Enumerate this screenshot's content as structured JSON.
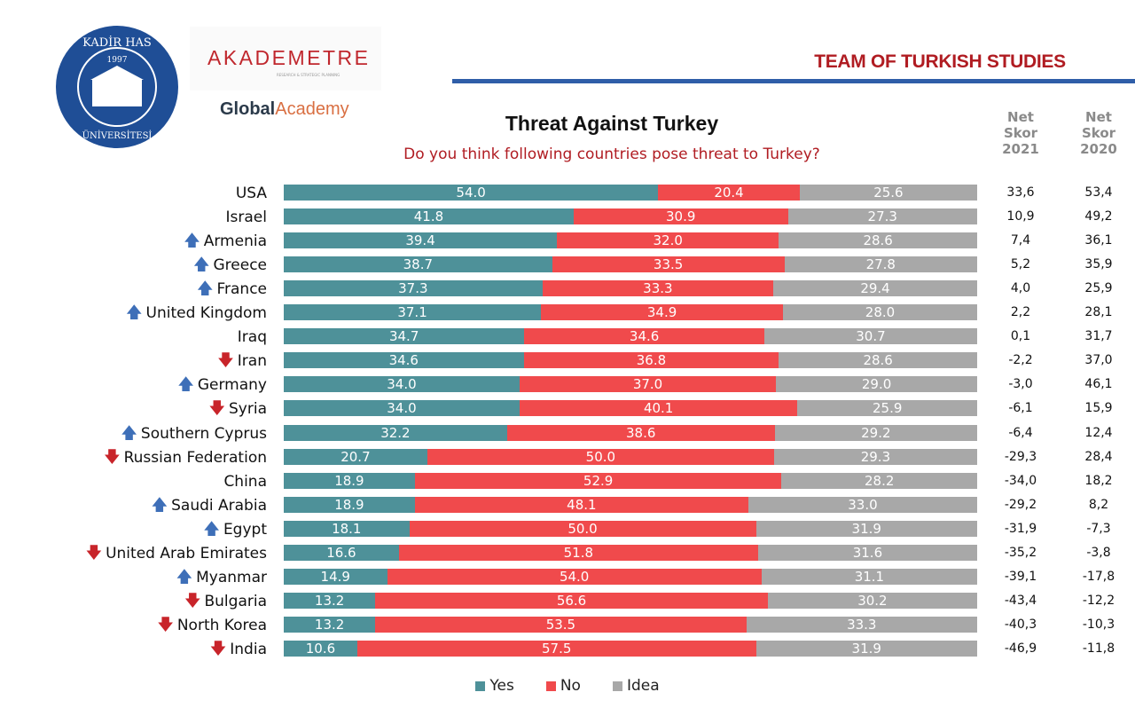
{
  "header": {
    "org": "TEAM OF TURKISH STUDIES",
    "logo_seal": "KADİR HAS ÜNİVERSİTESİ 1997",
    "logo_akademetre": "AKADEMETRE",
    "logo_akademetre_sub": "RESEARCH & STRATEGIC PLANNING",
    "logo_global_1": "Global",
    "logo_global_2": "Academy"
  },
  "colors": {
    "yes": "#4e9199",
    "no": "#f04a4c",
    "idea": "#a8a8a8",
    "up": "#3e6fb8",
    "down": "#c8242a",
    "accent": "#b01c22"
  },
  "net_headers": {
    "y2021": [
      "Net",
      "Skor",
      "2021"
    ],
    "y2020": [
      "Net",
      "Skor",
      "2020"
    ]
  },
  "chart_data": {
    "type": "bar",
    "stacked": true,
    "orientation": "horizontal",
    "title": "Threat Against Turkey",
    "subtitle": "Do you think following countries pose threat to Turkey?",
    "legend_position": "bottom",
    "xlim": [
      0,
      100
    ],
    "categories": [
      "USA",
      "Israel",
      "Armenia",
      "Greece",
      "France",
      "United Kingdom",
      "Iraq",
      "Iran",
      "Germany",
      "Syria",
      "Southern Cyprus",
      "Russian Federation",
      "China",
      "Saudi Arabia",
      "Egypt",
      "United Arab Emirates",
      "Myanmar",
      "Bulgaria",
      "North Korea",
      "India"
    ],
    "trend": [
      "",
      "",
      "up",
      "up",
      "up",
      "up",
      "",
      "down",
      "up",
      "down",
      "up",
      "down",
      "",
      "up",
      "up",
      "down",
      "up",
      "down",
      "down",
      "down"
    ],
    "series": [
      {
        "name": "Yes",
        "values": [
          "54.0",
          "41.8",
          "39.4",
          "38.7",
          "37.3",
          "37.1",
          "34.7",
          "34.6",
          "34.0",
          "34.0",
          "32.2",
          "20.7",
          "18.9",
          "18.9",
          "18.1",
          "16.6",
          "14.9",
          "13.2",
          "13.2",
          "10.6"
        ]
      },
      {
        "name": "No",
        "values": [
          "20.4",
          "30.9",
          "32.0",
          "33.5",
          "33.3",
          "34.9",
          "34.6",
          "36.8",
          "37.0",
          "40.1",
          "38.6",
          "50.0",
          "52.9",
          "48.1",
          "50.0",
          "51.8",
          "54.0",
          "56.6",
          "53.5",
          "57.5"
        ]
      },
      {
        "name": "Idea",
        "values": [
          "25.6",
          "27.3",
          "28.6",
          "27.8",
          "29.4",
          "28.0",
          "30.7",
          "28.6",
          "29.0",
          "25.9",
          "29.2",
          "29.3",
          "28.2",
          "33.0",
          "31.9",
          "31.6",
          "31.1",
          "30.2",
          "33.3",
          "31.9"
        ]
      }
    ],
    "net_2021": [
      "33,6",
      "10,9",
      "7,4",
      "5,2",
      "4,0",
      "2,2",
      "0,1",
      "-2,2",
      "-3,0",
      "-6,1",
      "-6,4",
      "-29,3",
      "-34,0",
      "-29,2",
      "-31,9",
      "-35,2",
      "-39,1",
      "-43,4",
      "-40,3",
      "-46,9"
    ],
    "net_2020": [
      "53,4",
      "49,2",
      "36,1",
      "35,9",
      "25,9",
      "28,1",
      "31,7",
      "37,0",
      "46,1",
      "15,9",
      "12,4",
      "28,4",
      "18,2",
      "8,2",
      "-7,3",
      "-3,8",
      "-17,8",
      "-12,2",
      "-10,3",
      "-11,8"
    ]
  }
}
